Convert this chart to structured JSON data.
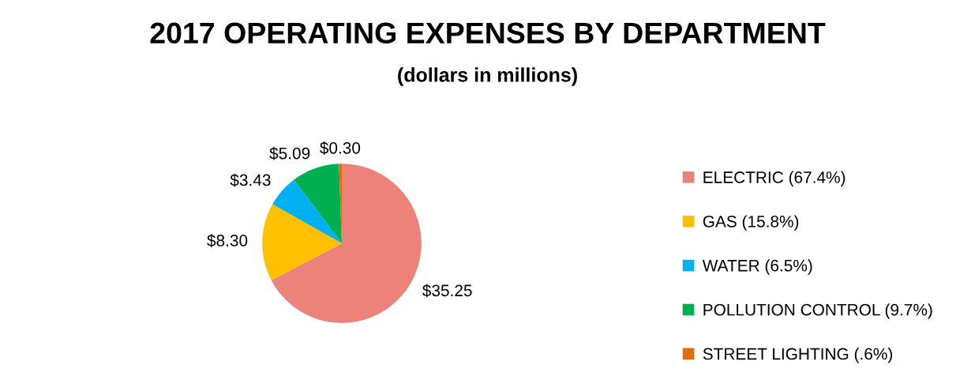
{
  "chart_data": {
    "type": "pie",
    "title": "2017 OPERATING EXPENSES BY DEPARTMENT",
    "subtitle": "(dollars in millions)",
    "categories": [
      "ELECTRIC (67.4%)",
      "GAS (15.8%)",
      "WATER (6.5%)",
      "POLLUTION CONTROL (9.7%)",
      "STREET LIGHTING (.6%)"
    ],
    "values": [
      35.25,
      8.3,
      3.43,
      5.09,
      0.3
    ],
    "value_labels": [
      "$35.25",
      "$8.30",
      "$3.43",
      "$5.09",
      "$0.30"
    ],
    "colors": [
      "#ed827b",
      "#ffc000",
      "#00b0f0",
      "#00b050",
      "#e36c09"
    ],
    "legend": "right"
  }
}
